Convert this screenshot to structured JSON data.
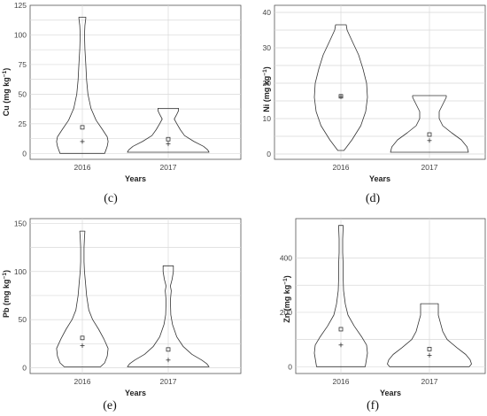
{
  "chart_data": [
    {
      "type": "violin",
      "panel_label": "(c)",
      "xlabel": "Years",
      "ylabel_main": "Cu",
      "ylabel_unit": "(mg kg",
      "ylabel_exp": "−1",
      "ylabel_close": ")",
      "categories": [
        "2016",
        "2017"
      ],
      "yticks": [
        0,
        25,
        50,
        75,
        100,
        125
      ],
      "ylim": [
        -5,
        125
      ],
      "violins": [
        {
          "category": "2016",
          "mean": 22,
          "median": 10,
          "profile": [
            [
              0,
              0.52
            ],
            [
              3,
              0.55
            ],
            [
              6,
              0.58
            ],
            [
              10,
              0.6
            ],
            [
              14,
              0.58
            ],
            [
              20,
              0.47
            ],
            [
              28,
              0.32
            ],
            [
              38,
              0.2
            ],
            [
              50,
              0.13
            ],
            [
              62,
              0.1
            ],
            [
              75,
              0.08
            ],
            [
              88,
              0.06
            ],
            [
              100,
              0.05
            ],
            [
              108,
              0.06
            ],
            [
              114,
              0.08
            ],
            [
              115,
              0.08
            ]
          ]
        },
        {
          "category": "2017",
          "mean": 12,
          "median": 8,
          "profile": [
            [
              1,
              0.95
            ],
            [
              3,
              0.92
            ],
            [
              6,
              0.82
            ],
            [
              10,
              0.6
            ],
            [
              15,
              0.38
            ],
            [
              20,
              0.28
            ],
            [
              25,
              0.2
            ],
            [
              29,
              0.14
            ],
            [
              33,
              0.2
            ],
            [
              36,
              0.24
            ],
            [
              38,
              0.24
            ]
          ]
        }
      ]
    },
    {
      "type": "violin",
      "panel_label": "(d)",
      "xlabel": "Years",
      "ylabel_main": "Ni",
      "ylabel_unit": "(mg kg",
      "ylabel_exp": "−1",
      "ylabel_close": ")",
      "categories": [
        "2016",
        "2017"
      ],
      "yticks": [
        0,
        10,
        20,
        30,
        40
      ],
      "ylim": [
        -1.5,
        42
      ],
      "violins": [
        {
          "category": "2016",
          "mean": 16.3,
          "median": 16.2,
          "profile": [
            [
              1,
              0.07
            ],
            [
              4,
              0.25
            ],
            [
              8,
              0.45
            ],
            [
              12,
              0.56
            ],
            [
              16,
              0.6
            ],
            [
              20,
              0.58
            ],
            [
              24,
              0.5
            ],
            [
              28,
              0.4
            ],
            [
              32,
              0.25
            ],
            [
              35,
              0.14
            ],
            [
              36.5,
              0.12
            ]
          ]
        },
        {
          "category": "2017",
          "mean": 5.5,
          "median": 3.8,
          "profile": [
            [
              0.5,
              0.88
            ],
            [
              2,
              0.85
            ],
            [
              4,
              0.72
            ],
            [
              6,
              0.5
            ],
            [
              8,
              0.3
            ],
            [
              10,
              0.22
            ],
            [
              12,
              0.22
            ],
            [
              14,
              0.3
            ],
            [
              16,
              0.38
            ],
            [
              16.5,
              0.38
            ]
          ]
        }
      ]
    },
    {
      "type": "violin",
      "panel_label": "(e)",
      "xlabel": "Years",
      "ylabel_main": "Pb",
      "ylabel_unit": "(mg kg",
      "ylabel_exp": "−1",
      "ylabel_close": ")",
      "categories": [
        "2016",
        "2017"
      ],
      "yticks": [
        0,
        50,
        100,
        150
      ],
      "ylim": [
        -6,
        155
      ],
      "violins": [
        {
          "category": "2016",
          "mean": 31,
          "median": 23,
          "profile": [
            [
              1,
              0.42
            ],
            [
              5,
              0.52
            ],
            [
              12,
              0.58
            ],
            [
              20,
              0.6
            ],
            [
              30,
              0.5
            ],
            [
              40,
              0.38
            ],
            [
              50,
              0.24
            ],
            [
              60,
              0.15
            ],
            [
              75,
              0.1
            ],
            [
              90,
              0.07
            ],
            [
              100,
              0.05
            ],
            [
              110,
              0.04
            ],
            [
              125,
              0.04
            ],
            [
              135,
              0.05
            ],
            [
              142,
              0.06
            ]
          ]
        },
        {
          "category": "2017",
          "mean": 19,
          "median": 8,
          "profile": [
            [
              1,
              0.95
            ],
            [
              4,
              0.9
            ],
            [
              8,
              0.78
            ],
            [
              14,
              0.55
            ],
            [
              22,
              0.35
            ],
            [
              32,
              0.2
            ],
            [
              45,
              0.1
            ],
            [
              55,
              0.06
            ],
            [
              70,
              0.05
            ],
            [
              80,
              0.07
            ],
            [
              85,
              0.05
            ],
            [
              92,
              0.09
            ],
            [
              100,
              0.12
            ],
            [
              106,
              0.12
            ]
          ]
        }
      ]
    },
    {
      "type": "violin",
      "panel_label": "(f)",
      "xlabel": "Years",
      "ylabel_main": "Zn",
      "ylabel_unit": "(mg kg",
      "ylabel_exp": "−1",
      "ylabel_close": ")",
      "categories": [
        "2016",
        "2017"
      ],
      "yticks": [
        0,
        200,
        400
      ],
      "ylim": [
        -25,
        545
      ],
      "violins": [
        {
          "category": "2016",
          "mean": 138,
          "median": 80,
          "profile": [
            [
              0,
              0.55
            ],
            [
              20,
              0.57
            ],
            [
              50,
              0.6
            ],
            [
              80,
              0.58
            ],
            [
              110,
              0.47
            ],
            [
              150,
              0.3
            ],
            [
              190,
              0.16
            ],
            [
              230,
              0.1
            ],
            [
              280,
              0.06
            ],
            [
              330,
              0.05
            ],
            [
              380,
              0.05
            ],
            [
              420,
              0.04
            ],
            [
              470,
              0.04
            ],
            [
              510,
              0.05
            ],
            [
              520,
              0.05
            ]
          ]
        },
        {
          "category": "2017",
          "mean": 65,
          "median": 42,
          "profile": [
            [
              0,
              0.9
            ],
            [
              10,
              0.95
            ],
            [
              25,
              0.92
            ],
            [
              45,
              0.82
            ],
            [
              70,
              0.62
            ],
            [
              100,
              0.4
            ],
            [
              130,
              0.3
            ],
            [
              160,
              0.25
            ],
            [
              190,
              0.2
            ],
            [
              215,
              0.2
            ],
            [
              232,
              0.2
            ]
          ]
        }
      ]
    }
  ]
}
